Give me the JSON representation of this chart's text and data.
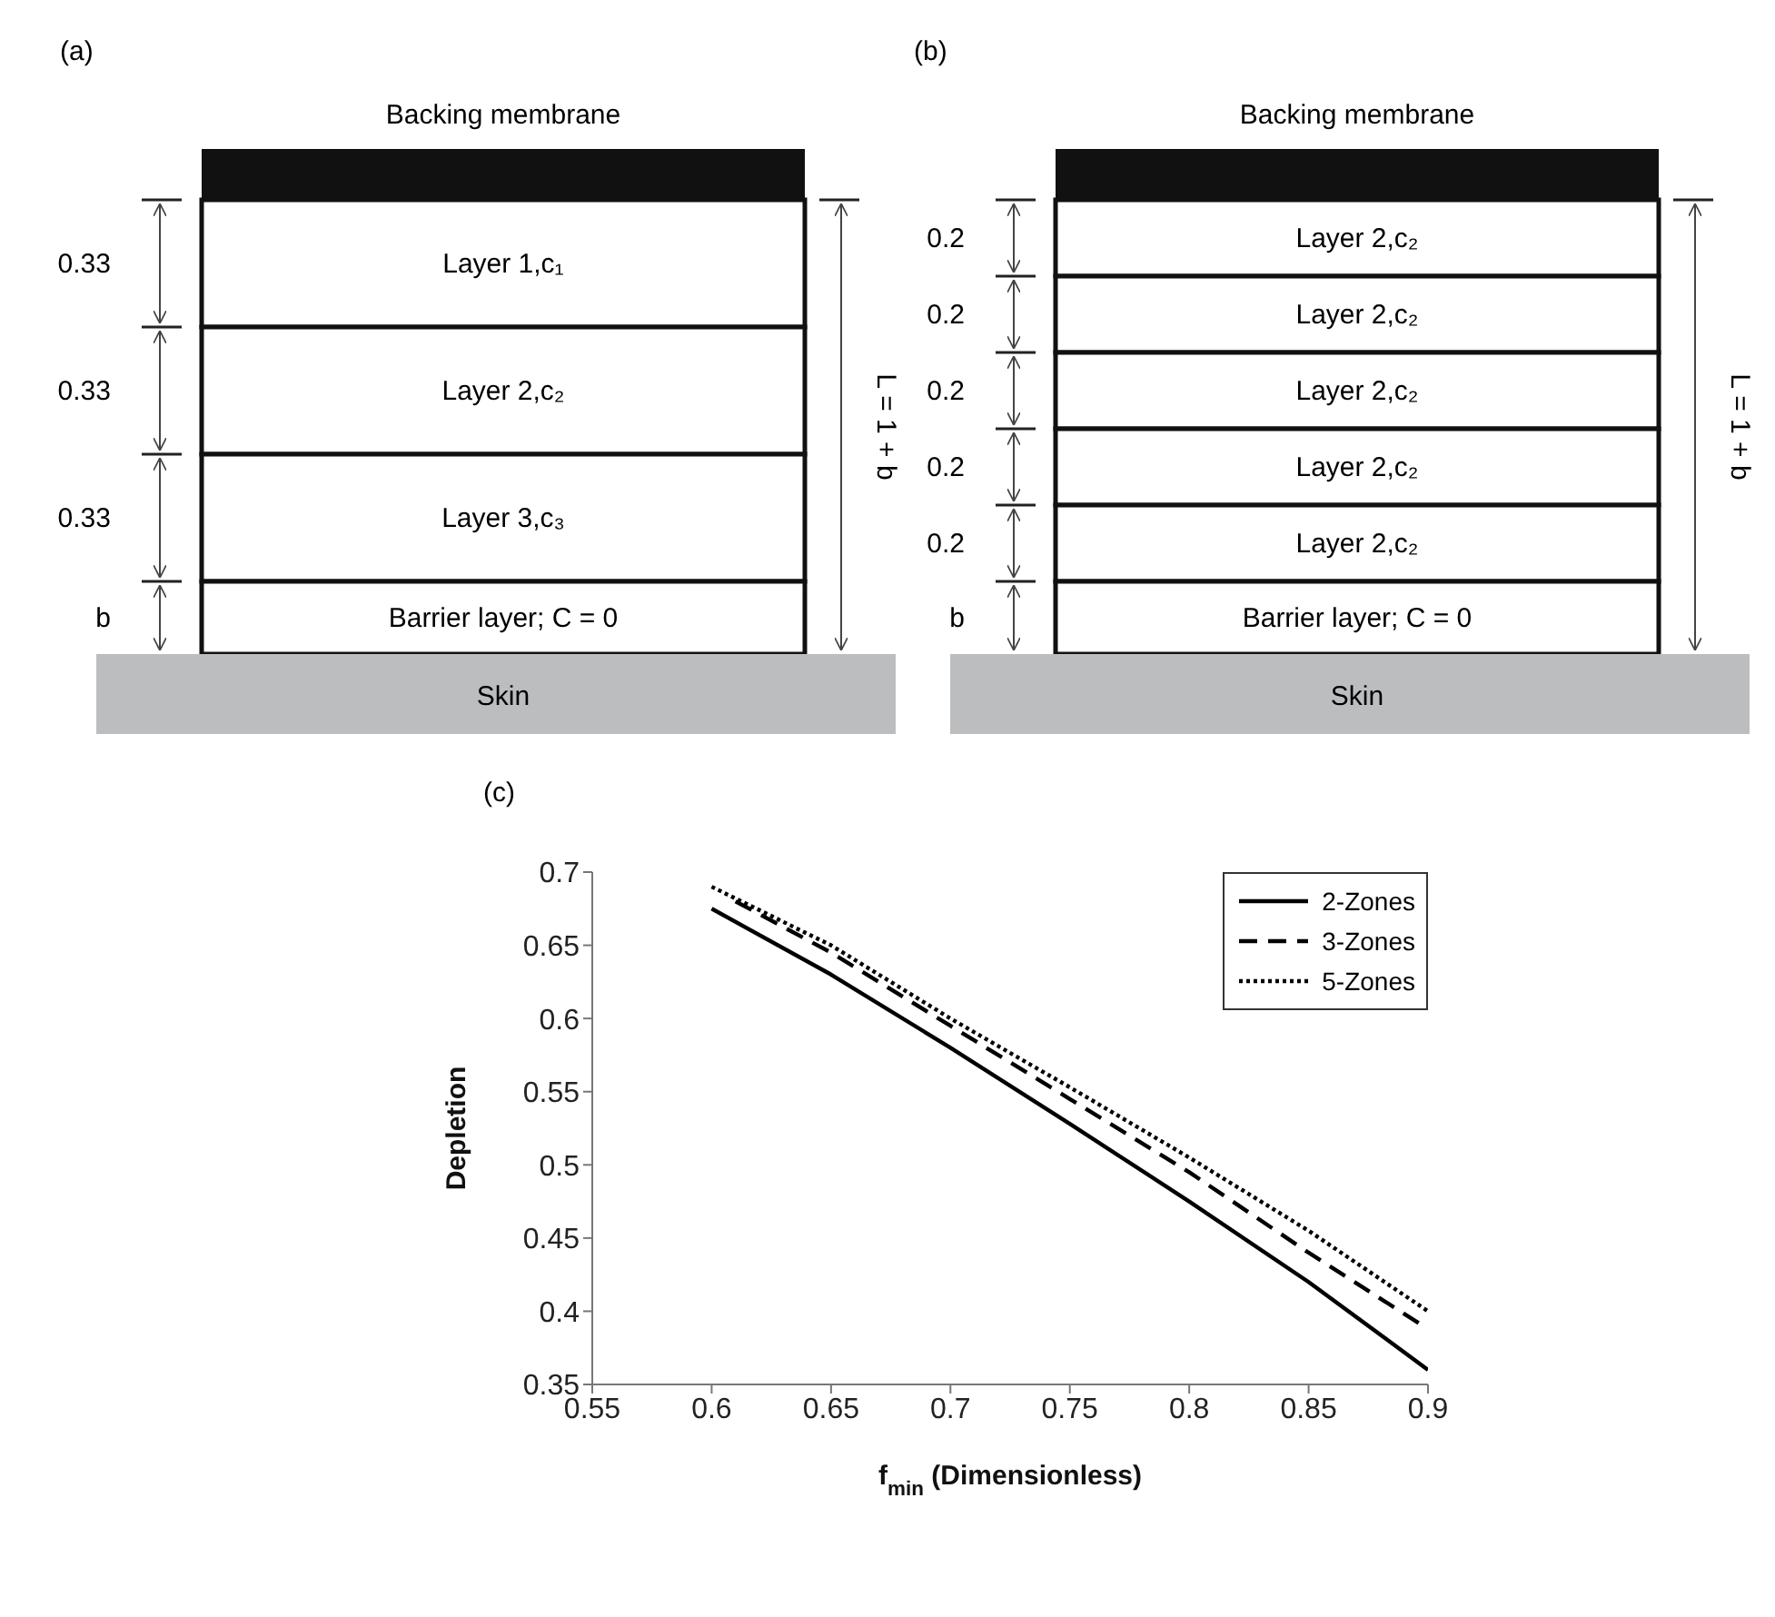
{
  "chart_data": [
    {
      "type": "other",
      "title": "(a)",
      "annotations": [
        "Backing membrane",
        "0.33",
        "Layer 1,c₁",
        "0.33",
        "Layer 2,c₂",
        "0.33",
        "Layer 3,c₃",
        "b",
        "Barrier layer; C = 0",
        "Skin",
        "L = 1 + b"
      ]
    },
    {
      "type": "other",
      "title": "(b)",
      "annotations": [
        "Backing membrane",
        "0.2",
        "Layer 2,c₂",
        "0.2",
        "Layer 2,c₂",
        "0.2",
        "Layer 2,c₂",
        "0.2",
        "Layer 2,c₂",
        "0.2",
        "Layer 2,c₂",
        "b",
        "Barrier layer; C = 0",
        "Skin",
        "L = 1 + b"
      ]
    },
    {
      "type": "line",
      "title": "(c)",
      "xlabel": "f$_{min}$ (Dimensionless)",
      "ylabel": "Depletion",
      "xlim": [
        0.55,
        0.9
      ],
      "xticks": [
        0.55,
        0.6,
        0.65,
        0.7,
        0.75,
        0.8,
        0.85,
        0.9
      ],
      "ylim": [
        0.35,
        0.7
      ],
      "yticks": [
        0.35,
        0.4,
        0.45,
        0.5,
        0.55,
        0.6,
        0.65,
        0.7
      ],
      "grid": false,
      "legend": "top right",
      "marker": "none",
      "series": [
        {
          "name": "2-Zones",
          "color": "#000000",
          "line_style": "solid",
          "x": [
            0.6,
            0.65,
            0.7,
            0.75,
            0.8,
            0.85,
            0.9
          ],
          "values": [
            0.675,
            0.63,
            0.58,
            0.528,
            0.475,
            0.42,
            0.36
          ]
        },
        {
          "name": "3-Zones",
          "color": "#000000",
          "line_style": "dashed",
          "x": [
            0.61,
            0.65,
            0.7,
            0.75,
            0.8,
            0.85,
            0.898
          ],
          "values": [
            0.68,
            0.645,
            0.595,
            0.545,
            0.495,
            0.44,
            0.39
          ]
        },
        {
          "name": "5-Zones",
          "color": "#000000",
          "line_style": "dotted",
          "x": [
            0.6,
            0.65,
            0.7,
            0.75,
            0.8,
            0.85,
            0.9
          ],
          "values": [
            0.69,
            0.65,
            0.6,
            0.553,
            0.505,
            0.455,
            0.4
          ]
        }
      ]
    }
  ]
}
